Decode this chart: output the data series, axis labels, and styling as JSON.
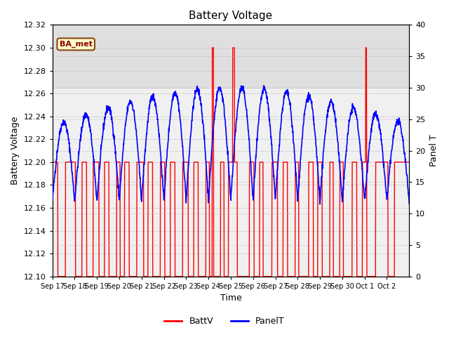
{
  "title": "Battery Voltage",
  "xlabel": "Time",
  "ylabel_left": "Battery Voltage",
  "ylabel_right": "Panel T",
  "ylim_left": [
    12.1,
    12.32
  ],
  "ylim_right": [
    0,
    40
  ],
  "yticks_left": [
    12.1,
    12.12,
    12.14,
    12.16,
    12.18,
    12.2,
    12.22,
    12.24,
    12.26,
    12.28,
    12.3,
    12.32
  ],
  "yticks_right": [
    0,
    5,
    10,
    15,
    20,
    25,
    30,
    35,
    40
  ],
  "xtick_labels": [
    "Sep 17",
    "Sep 18",
    "Sep 19",
    "Sep 20",
    "Sep 21",
    "Sep 22",
    "Sep 23",
    "Sep 24",
    "Sep 25",
    "Sep 26",
    "Sep 27",
    "Sep 28",
    "Sep 29",
    "Sep 30",
    "Oct 1",
    "Oct 2"
  ],
  "n_days": 16,
  "annotation_text": "BA_met",
  "batt_color": "#ff0000",
  "panel_color": "#0000ff",
  "legend_batt": "BattV",
  "legend_panel": "PanelT",
  "bg_color": "#f0f0f0",
  "band_color_top": "#d8d8d8"
}
